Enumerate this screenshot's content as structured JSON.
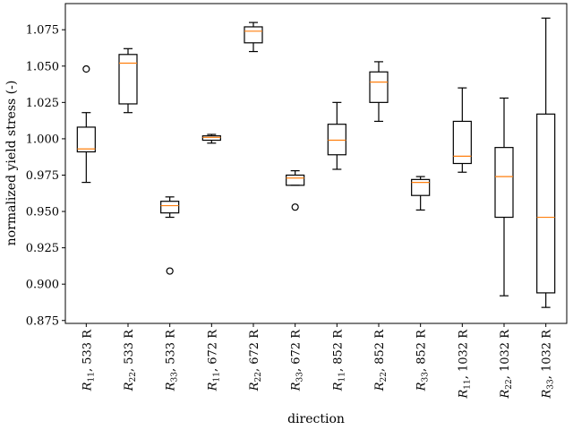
{
  "chart_data": {
    "type": "box",
    "xlabel": "direction",
    "ylabel": "normalized yield stress (-)",
    "ylim": [
      0.873,
      1.093
    ],
    "yticks": [
      "0.875",
      "0.900",
      "0.925",
      "0.950",
      "0.975",
      "1.000",
      "1.025",
      "1.050",
      "1.075"
    ],
    "colors": {
      "box": "#000000",
      "median": "#ff7f0e"
    },
    "categories": [
      {
        "sym": "R",
        "sub": "11",
        "suffix": ", 533 R"
      },
      {
        "sym": "R",
        "sub": "22",
        "suffix": ", 533 R"
      },
      {
        "sym": "R",
        "sub": "33",
        "suffix": ", 533 R"
      },
      {
        "sym": "R",
        "sub": "11",
        "suffix": ", 672 R"
      },
      {
        "sym": "R",
        "sub": "22",
        "suffix": ", 672 R"
      },
      {
        "sym": "R",
        "sub": "33",
        "suffix": ", 672 R"
      },
      {
        "sym": "R",
        "sub": "11",
        "suffix": ", 852 R"
      },
      {
        "sym": "R",
        "sub": "22",
        "suffix": ", 852 R"
      },
      {
        "sym": "R",
        "sub": "33",
        "suffix": ", 852 R"
      },
      {
        "sym": "R",
        "sub": "11",
        "suffix": ", 1032 R"
      },
      {
        "sym": "R",
        "sub": "22",
        "suffix": ", 1032 R"
      },
      {
        "sym": "R",
        "sub": "33",
        "suffix": ", 1032 R"
      }
    ],
    "boxes": [
      {
        "whislo": 0.97,
        "q1": 0.991,
        "med": 0.993,
        "q3": 1.008,
        "whishi": 1.018,
        "fliers": [
          1.048
        ]
      },
      {
        "whislo": 1.018,
        "q1": 1.024,
        "med": 1.052,
        "q3": 1.058,
        "whishi": 1.062,
        "fliers": []
      },
      {
        "whislo": 0.946,
        "q1": 0.949,
        "med": 0.954,
        "q3": 0.957,
        "whishi": 0.96,
        "fliers": [
          0.909
        ]
      },
      {
        "whislo": 0.997,
        "q1": 0.999,
        "med": 1.001,
        "q3": 1.002,
        "whishi": 1.003,
        "fliers": []
      },
      {
        "whislo": 1.06,
        "q1": 1.066,
        "med": 1.074,
        "q3": 1.077,
        "whishi": 1.08,
        "fliers": []
      },
      {
        "whislo": 0.968,
        "q1": 0.968,
        "med": 0.973,
        "q3": 0.975,
        "whishi": 0.978,
        "fliers": [
          0.953
        ]
      },
      {
        "whislo": 0.979,
        "q1": 0.989,
        "med": 0.999,
        "q3": 1.01,
        "whishi": 1.025,
        "fliers": []
      },
      {
        "whislo": 1.012,
        "q1": 1.025,
        "med": 1.039,
        "q3": 1.046,
        "whishi": 1.053,
        "fliers": []
      },
      {
        "whislo": 0.951,
        "q1": 0.961,
        "med": 0.97,
        "q3": 0.972,
        "whishi": 0.974,
        "fliers": []
      },
      {
        "whislo": 0.977,
        "q1": 0.983,
        "med": 0.988,
        "q3": 1.012,
        "whishi": 1.035,
        "fliers": []
      },
      {
        "whislo": 0.892,
        "q1": 0.946,
        "med": 0.974,
        "q3": 0.994,
        "whishi": 1.028,
        "fliers": []
      },
      {
        "whislo": 0.884,
        "q1": 0.894,
        "med": 0.946,
        "q3": 1.017,
        "whishi": 1.083,
        "fliers": []
      }
    ]
  }
}
